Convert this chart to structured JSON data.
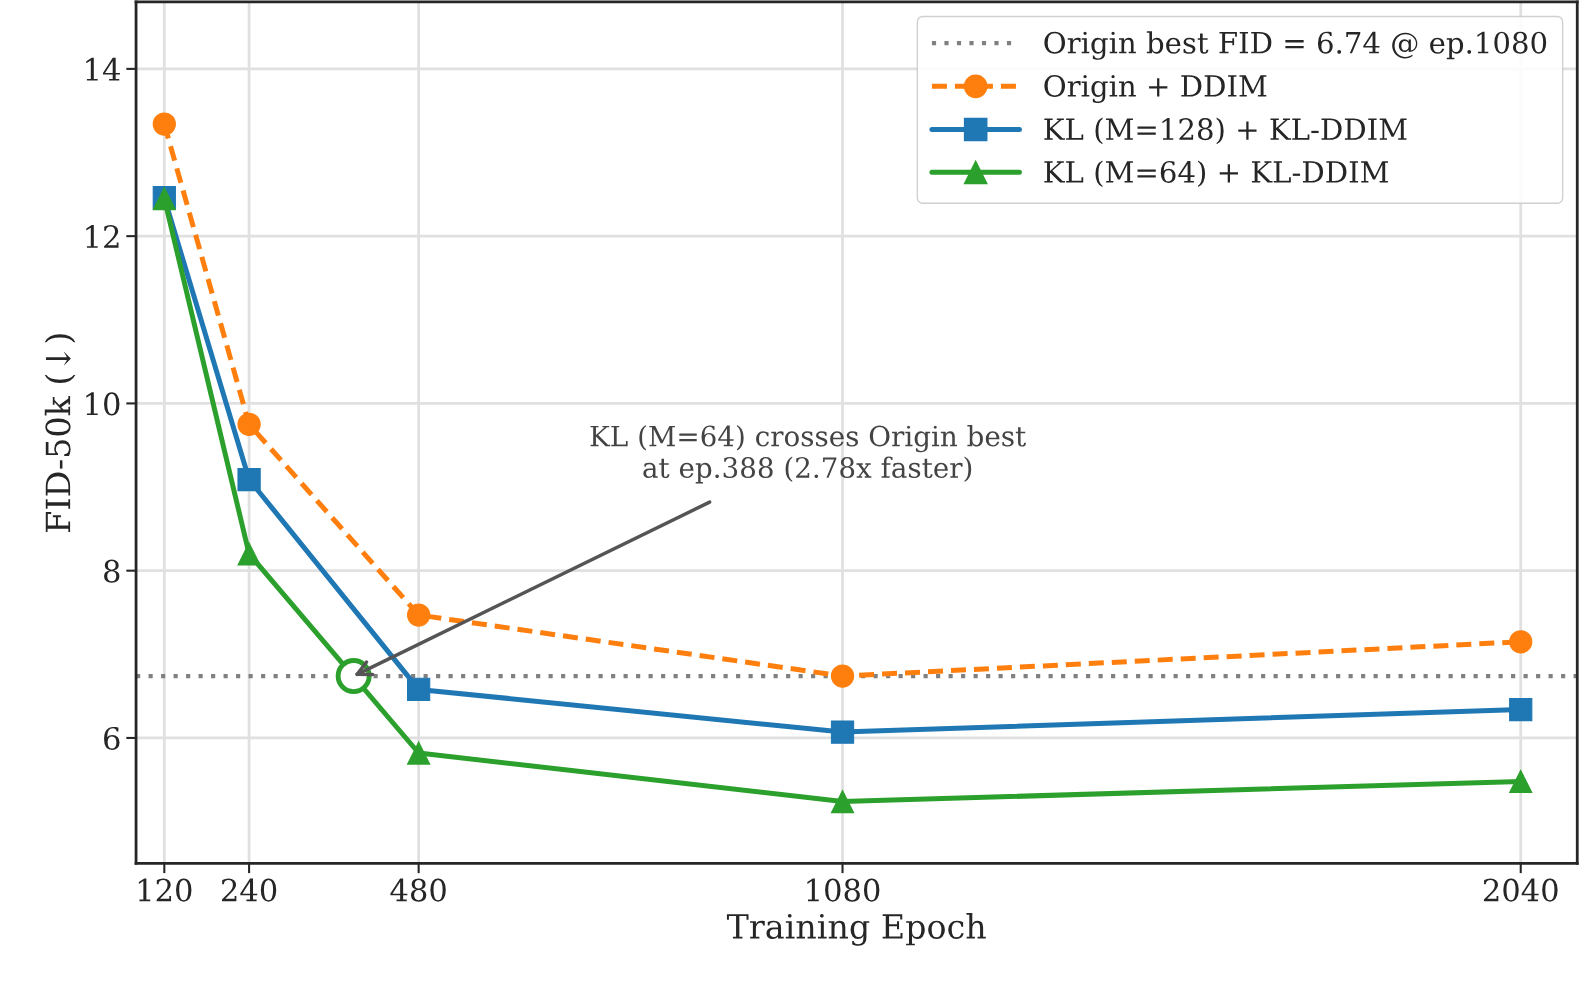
{
  "chart_data": {
    "type": "line",
    "xlabel": "Training Epoch",
    "ylabel": "FID-50k (↓)",
    "x": [
      120,
      240,
      480,
      1080,
      2040
    ],
    "series": [
      {
        "name": "Origin + DDIM",
        "color": "#ff7f0e",
        "marker": "circle",
        "line_style": "dashed",
        "values": [
          13.34,
          9.75,
          7.47,
          6.74,
          7.15
        ]
      },
      {
        "name": "KL (M=128) + KL-DDIM",
        "color": "#1f77b4",
        "marker": "square",
        "line_style": "solid",
        "values": [
          12.46,
          9.09,
          6.58,
          6.07,
          6.34
        ]
      },
      {
        "name": "KL (M=64) + KL-DDIM",
        "color": "#2ca02c",
        "marker": "triangle",
        "line_style": "solid",
        "values": [
          12.45,
          8.2,
          5.82,
          5.24,
          5.48
        ]
      },
      {
        "type": "scatter",
        "color": "#2ca02c",
        "marker": "circle",
        "x": [
          388
        ],
        "values": [
          6.74
        ]
      }
    ],
    "ref_lines": [
      {
        "axis": "y",
        "value": 6.74,
        "label": "Origin best FID = 6.74 @ ep.1080",
        "color": "#808080",
        "line_style": "dotted"
      }
    ],
    "annotations": [
      {
        "text": "KL (M=64) crosses Origin best\nat ep.388 (2.78x faster)",
        "x": 388,
        "y": 6.74
      }
    ],
    "xlim": [
      80,
      2120
    ],
    "ylim": [
      4.5,
      14.8
    ],
    "xticks": [
      120,
      240,
      480,
      1080,
      2040
    ],
    "yticks": [
      6,
      8,
      10,
      12,
      14
    ],
    "grid": true,
    "legend": "top right"
  }
}
